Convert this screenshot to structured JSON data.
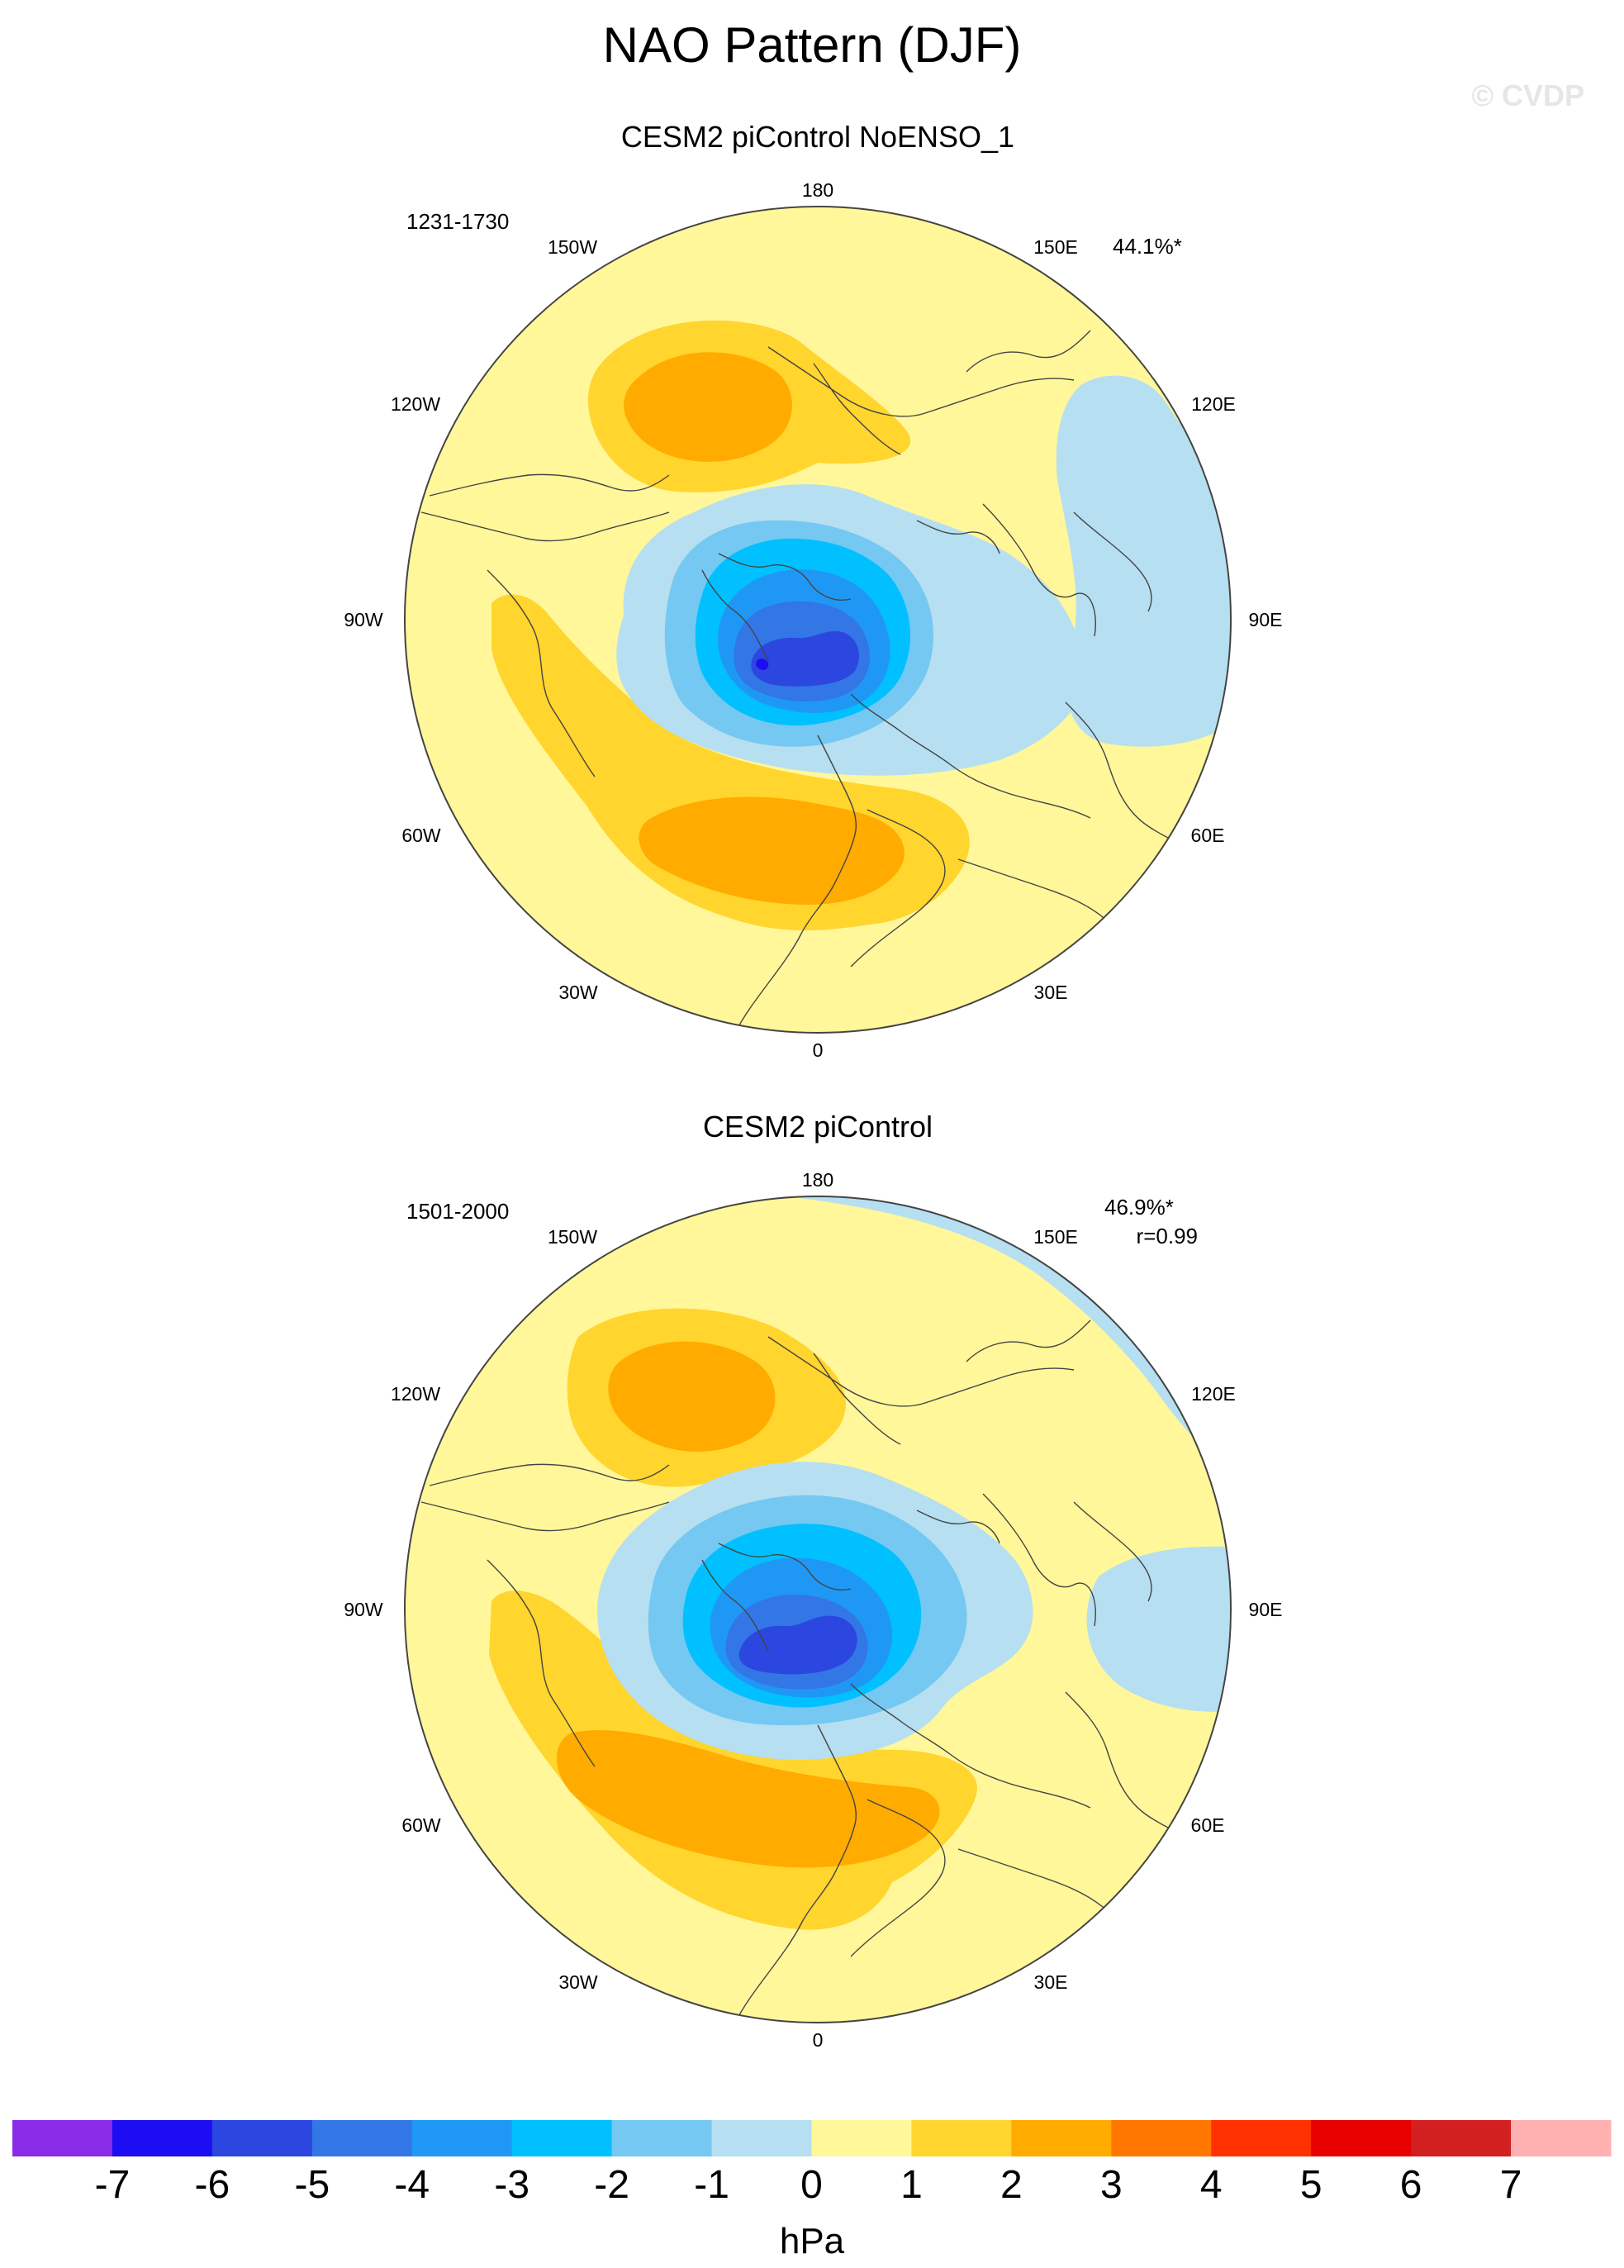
{
  "title": "NAO Pattern (DJF)",
  "watermark": "© CVDP",
  "panels": [
    {
      "id": "top",
      "subtitle": "CESM2 piControl NoENSO_1",
      "years": "1231-1730",
      "pct": "44.1%*",
      "r": ""
    },
    {
      "id": "bottom",
      "subtitle": "CESM2 piControl",
      "years": "1501-2000",
      "pct": "46.9%*",
      "r": "r=0.99"
    }
  ],
  "lon_labels": {
    "n180": "180",
    "w150": "150W",
    "e150": "150E",
    "w120": "120W",
    "e120": "120E",
    "w90": "90W",
    "e90": "90E",
    "w60": "60W",
    "e60": "60E",
    "w30": "30W",
    "e30": "30E",
    "s0": "0"
  },
  "colorbar": {
    "units": "hPa",
    "labels": [
      "-7",
      "-6",
      "-5",
      "-4",
      "-3",
      "-2",
      "-1",
      "0",
      "1",
      "2",
      "3",
      "4",
      "5",
      "6",
      "7"
    ],
    "colors": [
      "#8a2be8",
      "#1c0df2",
      "#2b47e0",
      "#3376e6",
      "#1f98f5",
      "#00c0ff",
      "#75c8f1",
      "#b6dff2",
      "#fff79a",
      "#ffd52e",
      "#ffab00",
      "#ff7700",
      "#ff3100",
      "#e80000",
      "#d21f1f",
      "#ffb0b0"
    ]
  },
  "chart_data": {
    "type": "contour-map",
    "title": "NAO Pattern (DJF)",
    "projection": "north polar stereographic",
    "variable": "sea level pressure anomaly",
    "units": "hPa",
    "levels": [
      -7,
      -6,
      -5,
      -4,
      -3,
      -2,
      -1,
      0,
      1,
      2,
      3,
      4,
      5,
      6,
      7
    ],
    "panels": [
      {
        "name": "CESM2 piControl NoENSO_1",
        "period": "1231-1730",
        "variance_explained": "44.1%*",
        "min_center_hpa": -5,
        "max_center_hpa": 3
      },
      {
        "name": "CESM2 piControl",
        "period": "1501-2000",
        "variance_explained": "46.9%*",
        "pattern_correlation": 0.99,
        "min_center_hpa": -5,
        "max_center_hpa": 3
      }
    ]
  }
}
